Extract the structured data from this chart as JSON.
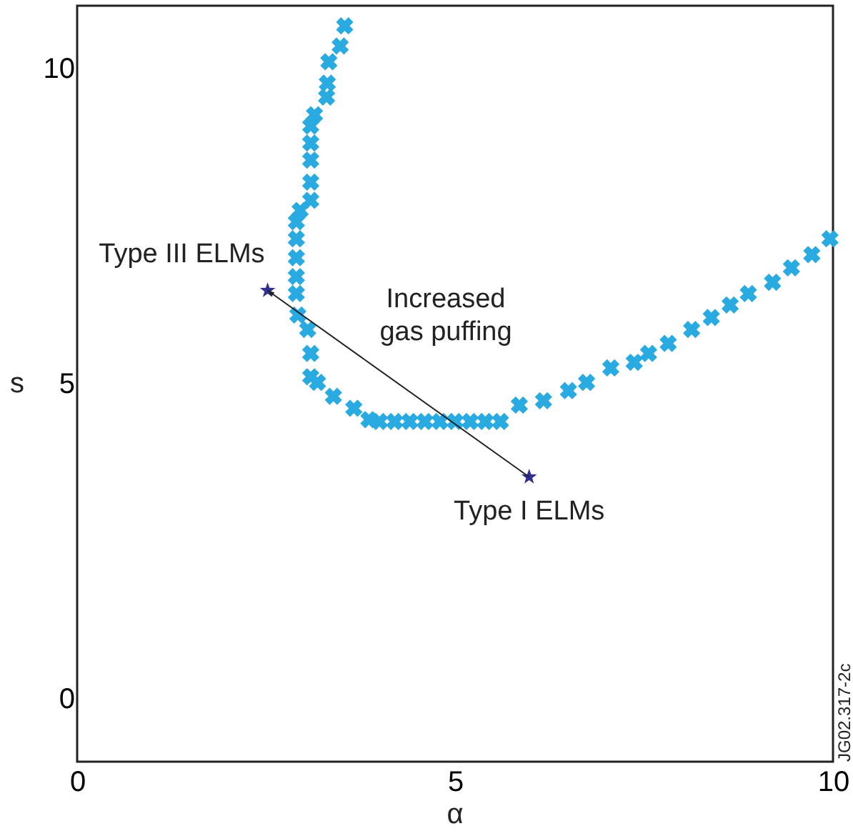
{
  "chart_data": {
    "type": "scatter",
    "xlabel": "α",
    "ylabel": "s",
    "xlim": [
      0,
      10
    ],
    "ylim": [
      -1,
      11
    ],
    "xticks": [
      0,
      5,
      10
    ],
    "yticks": [
      0,
      5,
      10
    ],
    "grid": false,
    "series": [
      {
        "marker": "cross",
        "color": "#29aae1",
        "x": [
          3.54,
          3.48,
          3.33,
          3.31,
          3.3,
          3.14,
          3.09,
          3.09,
          3.09,
          3.09,
          3.09,
          2.95,
          2.9,
          2.9,
          2.9,
          2.9,
          2.9,
          2.92,
          3.05,
          3.09,
          3.09,
          3.18,
          3.39,
          3.66,
          3.86,
          4.0,
          4.2,
          4.4,
          4.6,
          4.8,
          5.0,
          5.2,
          5.4,
          5.6,
          5.85,
          6.17,
          6.5,
          6.74,
          7.06,
          7.37,
          7.56,
          7.82,
          8.13,
          8.39,
          8.64,
          8.88,
          9.2,
          9.45,
          9.72,
          9.96
        ],
        "values": [
          10.68,
          10.36,
          10.11,
          9.77,
          9.55,
          9.27,
          9.09,
          8.82,
          8.55,
          8.2,
          7.91,
          7.75,
          7.57,
          7.3,
          7.0,
          6.7,
          6.43,
          6.09,
          5.86,
          5.48,
          5.11,
          5.02,
          4.8,
          4.61,
          4.43,
          4.4,
          4.4,
          4.4,
          4.4,
          4.4,
          4.4,
          4.4,
          4.4,
          4.4,
          4.66,
          4.73,
          4.89,
          5.02,
          5.25,
          5.34,
          5.48,
          5.64,
          5.86,
          6.05,
          6.25,
          6.43,
          6.61,
          6.84,
          7.05,
          7.3
        ]
      },
      {
        "marker": "star",
        "color": "#2e3192",
        "x": [
          2.52,
          5.98
        ],
        "values": [
          6.48,
          3.52
        ]
      }
    ],
    "annotations": [
      {
        "text": "Type III ELMs",
        "x": 2.52,
        "y": 6.48
      },
      {
        "text": "Type I ELMs",
        "x": 5.98,
        "y": 3.52
      },
      "Increased\ngas puffing",
      "JG02.317-2c"
    ]
  }
}
